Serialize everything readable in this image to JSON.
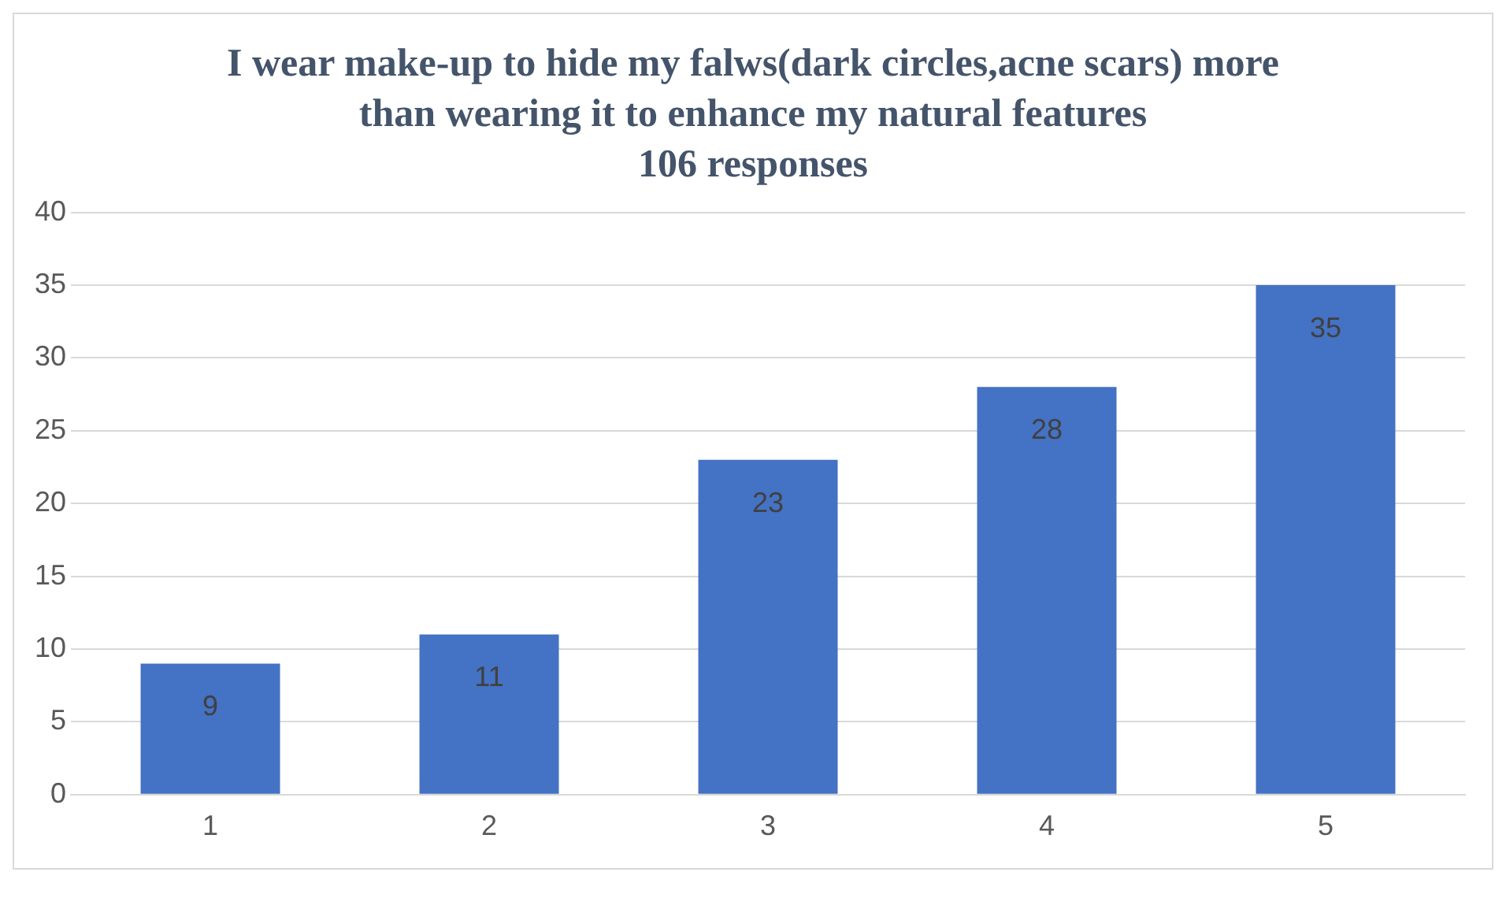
{
  "chart_data": {
    "type": "bar",
    "title": "I wear make-up to hide my falws(dark circles,acne scars) more than wearing it to enhance my natural features",
    "subtitle": "106 responses",
    "categories": [
      "1",
      "2",
      "3",
      "4",
      "5"
    ],
    "values": [
      9,
      11,
      23,
      28,
      35
    ],
    "color": "#4472c4",
    "ylim": [
      0,
      40
    ],
    "yticks": [
      0,
      5,
      10,
      15,
      20,
      25,
      30,
      35,
      40
    ],
    "grid": "y",
    "data_labels": true
  }
}
